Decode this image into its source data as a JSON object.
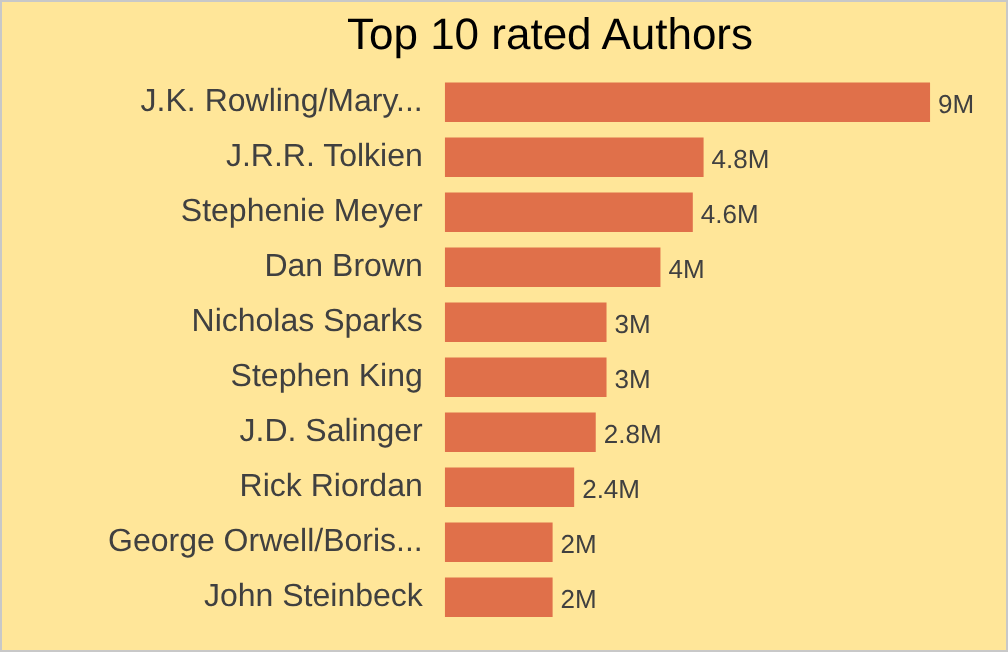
{
  "chart_data": {
    "type": "bar",
    "orientation": "horizontal",
    "title": "Top 10 rated Authors",
    "categories": [
      "J.K. Rowling/Mary...",
      "J.R.R. Tolkien",
      "Stephenie Meyer",
      "Dan Brown",
      "Nicholas Sparks",
      "Stephen King",
      "J.D. Salinger",
      "Rick Riordan",
      "George Orwell/Boris...",
      "John Steinbeck"
    ],
    "values": [
      9,
      4.8,
      4.6,
      4,
      3,
      3,
      2.8,
      2.4,
      2,
      2
    ],
    "value_labels": [
      "9M",
      "4.8M",
      "4.6M",
      "4M",
      "3M",
      "3M",
      "2.8M",
      "2.4M",
      "2M",
      "2M"
    ],
    "color": "#e0704a",
    "legend": false
  }
}
